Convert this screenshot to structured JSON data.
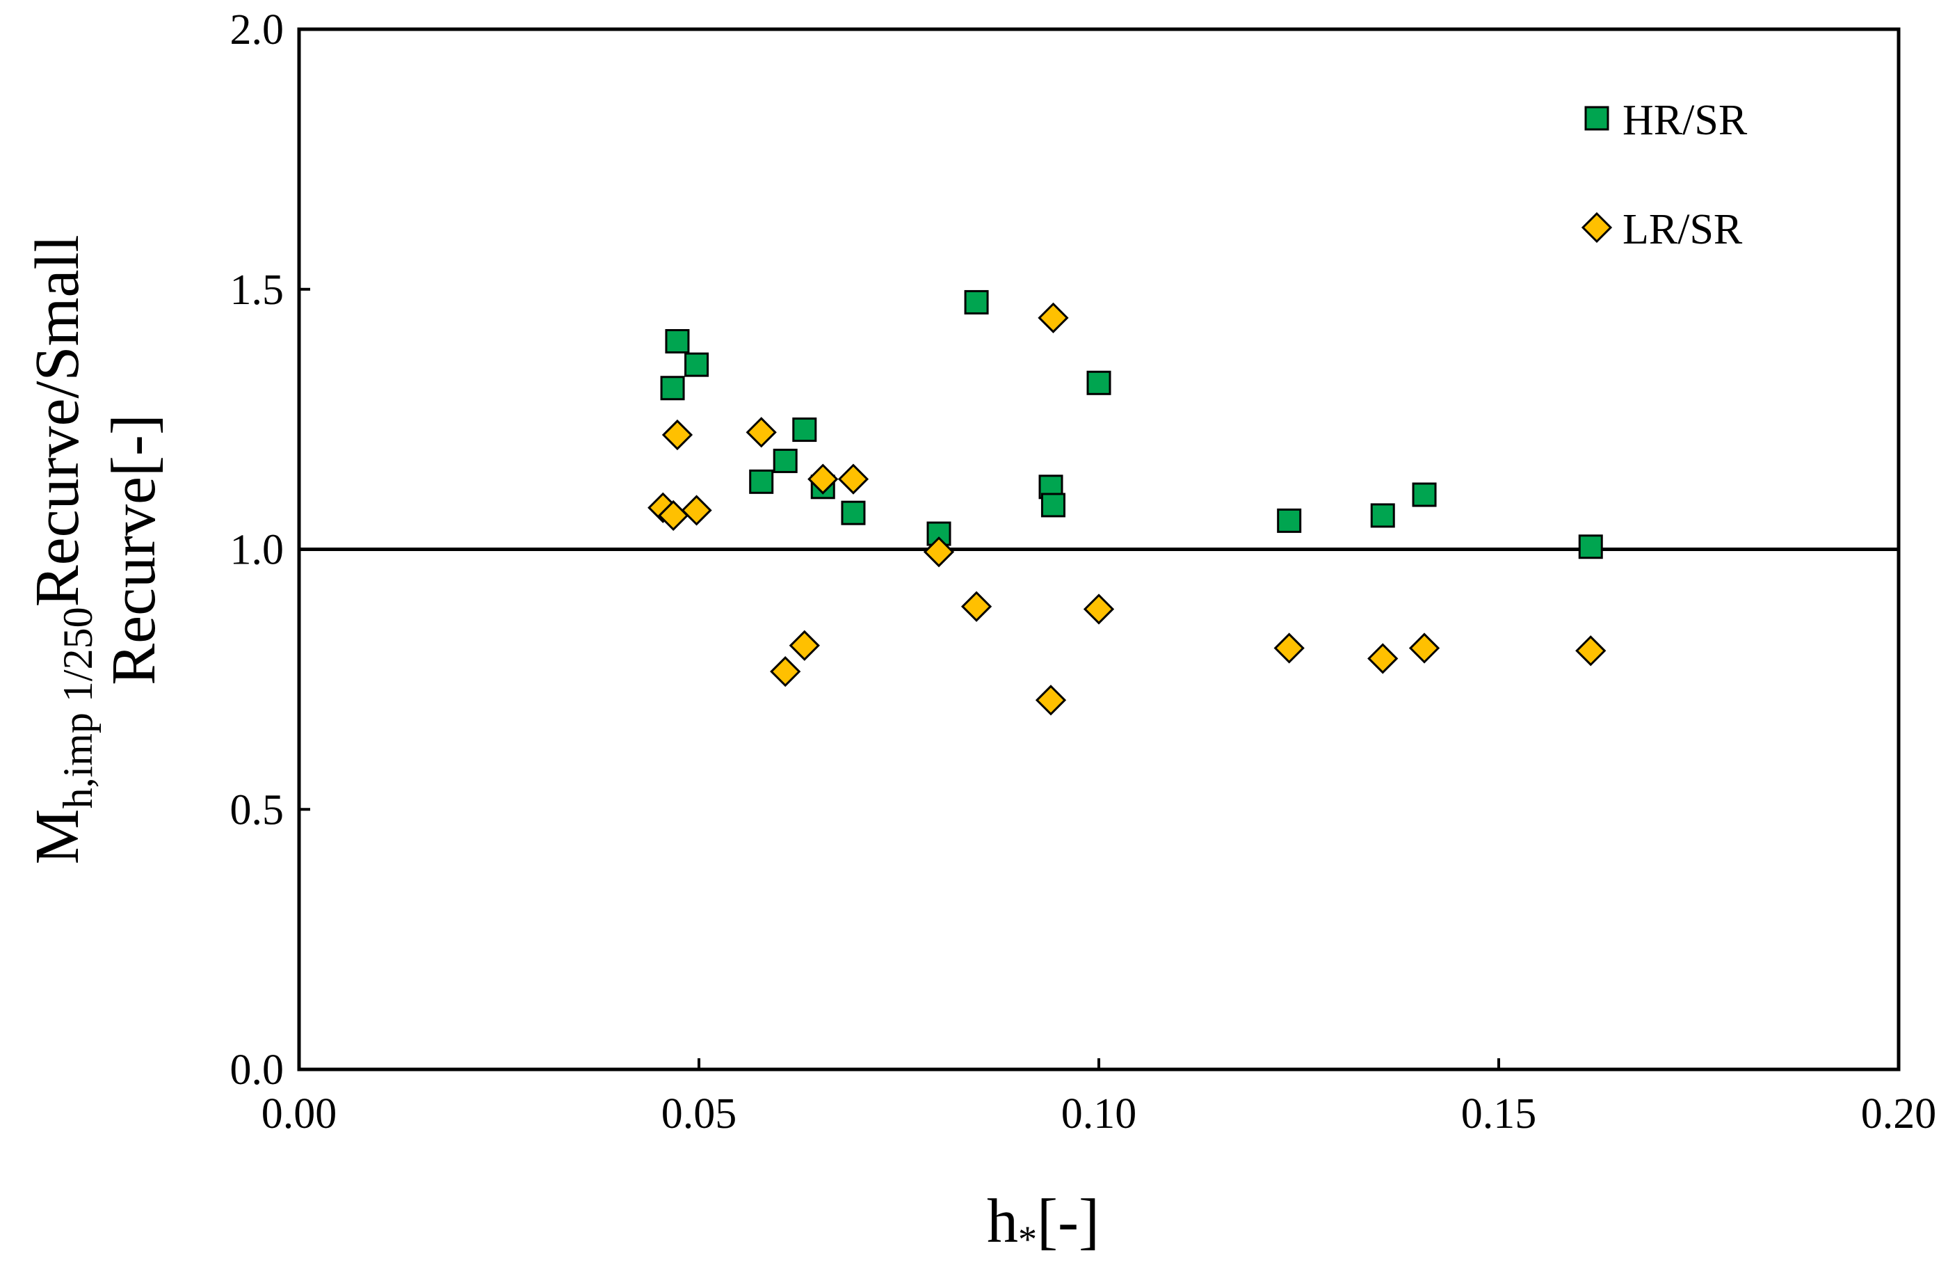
{
  "chart_data": {
    "type": "scatter",
    "title": "",
    "xlabel": "h*[-]",
    "xlabel_parts": {
      "main": "h",
      "sub": "*",
      "rest": "[-]"
    },
    "ylabel_line1_parts": {
      "main": "M",
      "sub": "h,imp 1/250",
      "rest": "Recurve/Small"
    },
    "ylabel_line2": "Recurve[-]",
    "xlim": [
      0.0,
      0.2
    ],
    "ylim": [
      0.0,
      2.0
    ],
    "xticks": [
      0.0,
      0.05,
      0.1,
      0.15,
      0.2
    ],
    "xtick_labels": [
      "0.00",
      "0.05",
      "0.10",
      "0.15",
      "0.20"
    ],
    "yticks": [
      0.0,
      0.5,
      1.0,
      1.5,
      2.0
    ],
    "ytick_labels": [
      "0.0",
      "0.5",
      "1.0",
      "1.5",
      "2.0"
    ],
    "grid": false,
    "legend_position": "top-right",
    "reference_line": {
      "y": 1.0
    },
    "series": [
      {
        "name": "HR/SR",
        "marker": "square",
        "color": "#00a550",
        "points": [
          [
            0.0467,
            1.31
          ],
          [
            0.0473,
            1.4
          ],
          [
            0.0497,
            1.355
          ],
          [
            0.0578,
            1.13
          ],
          [
            0.0608,
            1.17
          ],
          [
            0.0632,
            1.23
          ],
          [
            0.0655,
            1.12
          ],
          [
            0.0693,
            1.07
          ],
          [
            0.08,
            1.03
          ],
          [
            0.0847,
            1.475
          ],
          [
            0.094,
            1.12
          ],
          [
            0.0943,
            1.085
          ],
          [
            0.1,
            1.32
          ],
          [
            0.1238,
            1.055
          ],
          [
            0.1355,
            1.065
          ],
          [
            0.1407,
            1.105
          ],
          [
            0.1615,
            1.005
          ]
        ]
      },
      {
        "name": "LR/SR",
        "marker": "diamond",
        "color": "#ffc000",
        "points": [
          [
            0.0455,
            1.08
          ],
          [
            0.0468,
            1.065
          ],
          [
            0.0473,
            1.22
          ],
          [
            0.0497,
            1.075
          ],
          [
            0.0578,
            1.225
          ],
          [
            0.0608,
            0.765
          ],
          [
            0.0632,
            0.815
          ],
          [
            0.0655,
            1.135
          ],
          [
            0.0693,
            1.135
          ],
          [
            0.08,
            0.995
          ],
          [
            0.0847,
            0.89
          ],
          [
            0.094,
            0.71
          ],
          [
            0.0943,
            1.445
          ],
          [
            0.1,
            0.885
          ],
          [
            0.1238,
            0.81
          ],
          [
            0.1355,
            0.79
          ],
          [
            0.1407,
            0.81
          ],
          [
            0.1615,
            0.805
          ]
        ]
      }
    ]
  }
}
